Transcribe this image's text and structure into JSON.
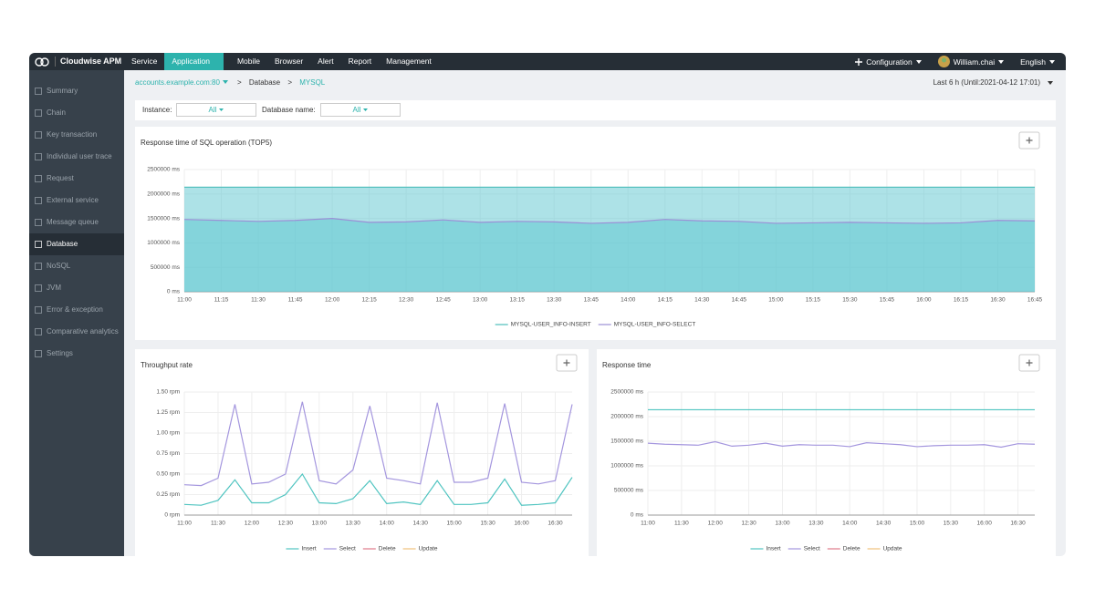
{
  "nav": {
    "brand": "Cloudwise APM",
    "items": [
      "Service",
      "Application",
      "Mobile",
      "Browser",
      "Alert",
      "Report",
      "Management"
    ],
    "active": 1,
    "right": {
      "configuration": "Configuration",
      "user": "William.chai",
      "language": "English"
    }
  },
  "sidebar": {
    "items": [
      "Summary",
      "Chain",
      "Key transaction",
      "Individual user trace",
      "Request",
      "External service",
      "Message queue",
      "Database",
      "NoSQL",
      "JVM",
      "Error & exception",
      "Comparative analytics",
      "Settings"
    ],
    "active": 7
  },
  "breadcrumb": {
    "host": "accounts.example.com:80",
    "separator": ">",
    "items": [
      "Database",
      "MYSQL"
    ]
  },
  "time_range": "Last 6 h (Until:2021-04-12 17:01)",
  "filters": [
    {
      "label": "Instance:",
      "value": "All"
    },
    {
      "label": "Database name:",
      "value": "All"
    }
  ],
  "chart_data": [
    {
      "type": "area",
      "title": "Response time of SQL operation (TOP5)",
      "fill_color": "#5cc6cf",
      "grid": true,
      "legend": "bottom",
      "categories": [
        "11:00",
        "11:15",
        "11:30",
        "11:45",
        "12:00",
        "12:15",
        "12:30",
        "12:45",
        "13:00",
        "13:15",
        "13:30",
        "13:45",
        "14:00",
        "14:15",
        "14:30",
        "14:45",
        "15:00",
        "15:15",
        "15:30",
        "15:45",
        "16:00",
        "16:15",
        "16:30",
        "16:45"
      ],
      "series": [
        {
          "name": "MYSQL-USER_INFO-INSERT",
          "color": "#4dbdbb",
          "values": [
            2140000,
            2140000,
            2140000,
            2140000,
            2140000,
            2140000,
            2140000,
            2140000,
            2140000,
            2140000,
            2140000,
            2140000,
            2140000,
            2140000,
            2140000,
            2140000,
            2140000,
            2140000,
            2140000,
            2140000,
            2140000,
            2140000,
            2140000,
            2140000
          ]
        },
        {
          "name": "MYSQL-USER_INFO-SELECT",
          "color": "#9b8fd6",
          "values": [
            1480000,
            1460000,
            1440000,
            1460000,
            1500000,
            1420000,
            1430000,
            1470000,
            1420000,
            1440000,
            1430000,
            1400000,
            1420000,
            1480000,
            1450000,
            1440000,
            1400000,
            1410000,
            1420000,
            1410000,
            1400000,
            1410000,
            1460000,
            1450000
          ]
        }
      ],
      "ylim": [
        0,
        2500000
      ],
      "yticks": [
        {
          "value": 0,
          "label": "0 ms"
        },
        {
          "value": 500000,
          "label": "500000 ms"
        },
        {
          "value": 1000000,
          "label": "1000000 ms"
        },
        {
          "value": 1500000,
          "label": "1500000 ms"
        },
        {
          "value": 2000000,
          "label": "2000000 ms"
        },
        {
          "value": 2500000,
          "label": "2500000 ms"
        }
      ]
    },
    {
      "type": "line",
      "title": "Throughput rate",
      "grid": true,
      "legend": "bottom",
      "categories": [
        "11:00",
        null,
        "11:30",
        null,
        "12:00",
        null,
        "12:30",
        null,
        "13:00",
        null,
        "13:30",
        null,
        "14:00",
        null,
        "14:30",
        null,
        "15:00",
        null,
        "15:30",
        null,
        "16:00",
        null,
        "16:30",
        null
      ],
      "series": [
        {
          "name": "Insert",
          "color": "#4fc4c0",
          "values": [
            0.13,
            0.12,
            0.18,
            0.43,
            0.15,
            0.15,
            0.25,
            0.5,
            0.15,
            0.14,
            0.2,
            0.42,
            0.14,
            0.16,
            0.13,
            0.42,
            0.13,
            0.13,
            0.15,
            0.44,
            0.12,
            0.13,
            0.15,
            0.46
          ]
        },
        {
          "name": "Select",
          "color": "#a496de",
          "values": [
            0.37,
            0.36,
            0.45,
            1.35,
            0.38,
            0.4,
            0.5,
            1.38,
            0.42,
            0.38,
            0.55,
            1.33,
            0.45,
            0.42,
            0.38,
            1.37,
            0.4,
            0.4,
            0.45,
            1.36,
            0.4,
            0.38,
            0.42,
            1.35
          ]
        },
        {
          "name": "Delete",
          "color": "#e07a8a",
          "values": [
            null,
            null,
            null,
            null,
            null,
            null,
            null,
            null,
            null,
            null,
            null,
            null,
            null,
            null,
            null,
            null,
            null,
            null,
            null,
            null,
            null,
            null,
            null,
            null
          ]
        },
        {
          "name": "Update",
          "color": "#f0c27b",
          "values": [
            null,
            null,
            null,
            null,
            null,
            null,
            null,
            null,
            null,
            null,
            null,
            null,
            null,
            null,
            null,
            null,
            null,
            null,
            null,
            null,
            null,
            null,
            null,
            null
          ]
        }
      ],
      "ylim": [
        0,
        1.5
      ],
      "yticks": [
        {
          "value": 0,
          "label": "0 rpm"
        },
        {
          "value": 0.25,
          "label": "0.25 rpm"
        },
        {
          "value": 0.5,
          "label": "0.50 rpm"
        },
        {
          "value": 0.75,
          "label": "0.75 rpm"
        },
        {
          "value": 1,
          "label": "1.00 rpm"
        },
        {
          "value": 1.25,
          "label": "1.25 rpm"
        },
        {
          "value": 1.5,
          "label": "1.50 rpm"
        }
      ]
    },
    {
      "type": "line",
      "title": "Response time",
      "grid": true,
      "legend": "bottom",
      "categories": [
        "11:00",
        null,
        "11:30",
        null,
        "12:00",
        null,
        "12:30",
        null,
        "13:00",
        null,
        "13:30",
        null,
        "14:00",
        null,
        "14:30",
        null,
        "15:00",
        null,
        "15:30",
        null,
        "16:00",
        null,
        "16:30",
        null
      ],
      "series": [
        {
          "name": "Insert",
          "color": "#4fc4c0",
          "values": [
            2140000,
            2140000,
            2140000,
            2140000,
            2140000,
            2140000,
            2140000,
            2140000,
            2140000,
            2140000,
            2140000,
            2140000,
            2140000,
            2140000,
            2140000,
            2140000,
            2140000,
            2140000,
            2140000,
            2140000,
            2140000,
            2140000,
            2140000,
            2140000
          ]
        },
        {
          "name": "Select",
          "color": "#a496de",
          "values": [
            1460000,
            1440000,
            1430000,
            1420000,
            1490000,
            1400000,
            1420000,
            1460000,
            1400000,
            1430000,
            1420000,
            1420000,
            1390000,
            1470000,
            1450000,
            1430000,
            1390000,
            1410000,
            1420000,
            1420000,
            1430000,
            1380000,
            1450000,
            1440000
          ]
        },
        {
          "name": "Delete",
          "color": "#e07a8a",
          "values": [
            null,
            null,
            null,
            null,
            null,
            null,
            null,
            null,
            null,
            null,
            null,
            null,
            null,
            null,
            null,
            null,
            null,
            null,
            null,
            null,
            null,
            null,
            null,
            null
          ]
        },
        {
          "name": "Update",
          "color": "#f0c27b",
          "values": [
            null,
            null,
            null,
            null,
            null,
            null,
            null,
            null,
            null,
            null,
            null,
            null,
            null,
            null,
            null,
            null,
            null,
            null,
            null,
            null,
            null,
            null,
            null,
            null
          ]
        }
      ],
      "ylim": [
        0,
        2500000
      ],
      "yticks": [
        {
          "value": 0,
          "label": "0 ms"
        },
        {
          "value": 500000,
          "label": "500000 ms"
        },
        {
          "value": 1000000,
          "label": "1000000 ms"
        },
        {
          "value": 1500000,
          "label": "1500000 ms"
        },
        {
          "value": 2000000,
          "label": "2000000 ms"
        },
        {
          "value": 2500000,
          "label": "2500000 ms"
        }
      ]
    }
  ]
}
